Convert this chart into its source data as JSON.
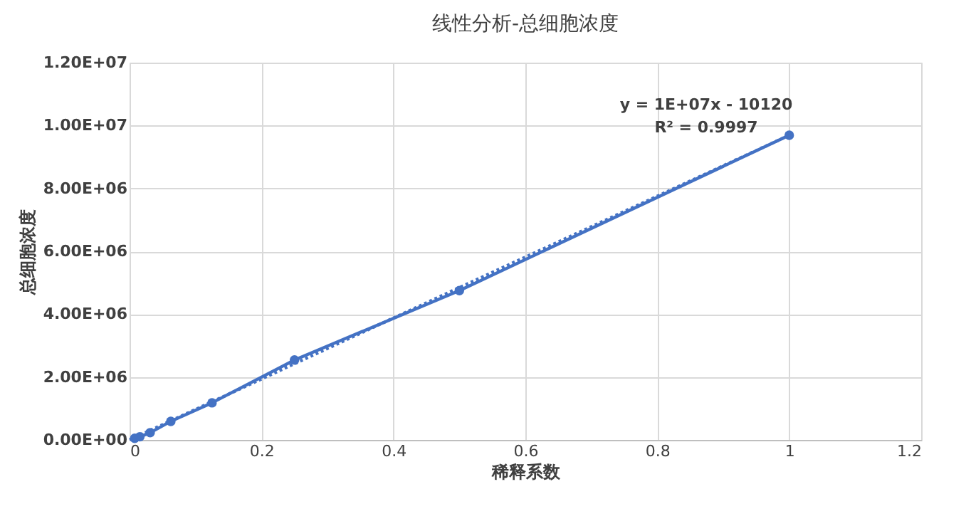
{
  "chart_data": {
    "type": "line",
    "title": "线性分析-总细胞浓度",
    "xlabel": "稀释系数",
    "ylabel": "总细胞浓度",
    "series": [
      {
        "color": "#4472c4",
        "marker": "circle",
        "line_style": "solid",
        "x": [
          0.0078125,
          0.015625,
          0.03125,
          0.0625,
          0.125,
          0.25,
          0.5,
          1
        ],
        "values": [
          50000,
          100000,
          230000,
          590000,
          1180000,
          2540000,
          4750000,
          9690000
        ]
      },
      {
        "color": "#4472c4",
        "line_style": "dotted",
        "x": [
          0,
          1
        ],
        "values": [
          0,
          9690000
        ]
      }
    ],
    "xlim": [
      0,
      1.2
    ],
    "xticks": [
      0,
      0.2,
      0.4,
      0.6,
      0.8,
      1,
      1.2
    ],
    "ylim": [
      0,
      12000000
    ],
    "yticks": [
      {
        "value": 0,
        "label": "0.00E+00"
      },
      {
        "value": 2000000,
        "label": "2.00E+06"
      },
      {
        "value": 4000000,
        "label": "4.00E+06"
      },
      {
        "value": 6000000,
        "label": "6.00E+06"
      },
      {
        "value": 8000000,
        "label": "8.00E+06"
      },
      {
        "value": 10000000,
        "label": "1.00E+07"
      },
      {
        "value": 12000000,
        "label": "1.20E+07"
      }
    ],
    "annotations": [
      "y = 1E+07x - 10120",
      "R² = 0.9997"
    ],
    "grid": true
  }
}
